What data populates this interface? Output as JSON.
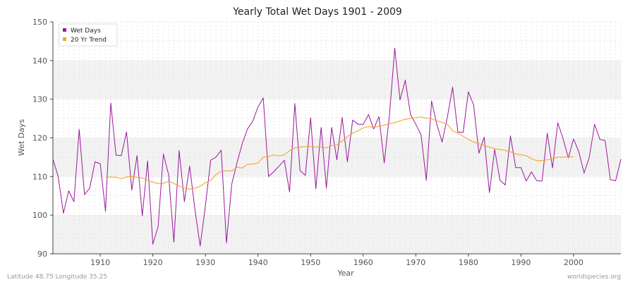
{
  "chart_data": {
    "type": "line",
    "title": "Yearly Total Wet Days 1901 - 2009",
    "xlabel": "Year",
    "ylabel": "Wet Days",
    "xlim": [
      1901,
      2009
    ],
    "ylim": [
      90,
      150
    ],
    "xticks": [
      1910,
      1920,
      1930,
      1940,
      1950,
      1960,
      1970,
      1980,
      1990,
      2000
    ],
    "yticks": [
      90,
      100,
      110,
      120,
      130,
      140,
      150
    ],
    "grid": true,
    "legend_position": "top-left",
    "series": [
      {
        "name": "Wet Days",
        "color": "#9b199b",
        "x": [
          1901,
          1902,
          1903,
          1904,
          1905,
          1906,
          1907,
          1908,
          1909,
          1910,
          1911,
          1912,
          1913,
          1914,
          1915,
          1916,
          1917,
          1918,
          1919,
          1920,
          1921,
          1922,
          1923,
          1924,
          1925,
          1926,
          1927,
          1928,
          1929,
          1930,
          1931,
          1932,
          1933,
          1934,
          1935,
          1936,
          1937,
          1938,
          1939,
          1940,
          1941,
          1942,
          1943,
          1944,
          1945,
          1946,
          1947,
          1948,
          1949,
          1950,
          1951,
          1952,
          1953,
          1954,
          1955,
          1956,
          1957,
          1958,
          1959,
          1960,
          1961,
          1962,
          1963,
          1964,
          1965,
          1966,
          1967,
          1968,
          1969,
          1970,
          1971,
          1972,
          1973,
          1974,
          1975,
          1976,
          1977,
          1978,
          1979,
          1980,
          1981,
          1982,
          1983,
          1984,
          1985,
          1986,
          1987,
          1988,
          1989,
          1990,
          1991,
          1992,
          1993,
          1994,
          1995,
          1996,
          1997,
          1998,
          1999,
          2000,
          2001,
          2002,
          2003,
          2004,
          2005,
          2006,
          2007,
          2008,
          2009
        ],
        "values": [
          114.5,
          110,
          100.5,
          106.3,
          103.5,
          122.2,
          105.3,
          107,
          113.8,
          113.3,
          101,
          129,
          115.5,
          115.4,
          121.5,
          106.5,
          115.4,
          99.8,
          114,
          92.5,
          97,
          115.8,
          110.5,
          93,
          116.7,
          103.5,
          112.7,
          101.5,
          92,
          102.5,
          114.2,
          115,
          116.8,
          92.8,
          108,
          113.5,
          118.5,
          122.3,
          124.3,
          128,
          130.3,
          110,
          111.2,
          112.7,
          114.2,
          106,
          128.9,
          111.5,
          110.3,
          125.2,
          106.8,
          122.7,
          107,
          122.7,
          114.3,
          125.3,
          113.8,
          124.6,
          123.5,
          123.5,
          126,
          122.3,
          125.5,
          113.5,
          126,
          143.2,
          129.8,
          134.9,
          126,
          123.5,
          120.8,
          109,
          129.5,
          123.5,
          118.9,
          125.3,
          133.1,
          121.5,
          121.4,
          131.9,
          128.5,
          116,
          120.2,
          105.8,
          117,
          109.1,
          107.8,
          120.5,
          112.3,
          112.3,
          108.8,
          111.2,
          108.9,
          108.8,
          121.2,
          112.2,
          123.9,
          119.8,
          114.8,
          119.7,
          116.4,
          110.9,
          115,
          123.5,
          119.6,
          119.3,
          109.2,
          108.9,
          114.5
        ]
      },
      {
        "name": "20 Yr Trend",
        "color": "#f5a623",
        "x": [
          1911,
          1912,
          1913,
          1914,
          1915,
          1916,
          1917,
          1918,
          1919,
          1920,
          1921,
          1922,
          1923,
          1924,
          1925,
          1926,
          1927,
          1928,
          1929,
          1930,
          1931,
          1932,
          1933,
          1934,
          1935,
          1936,
          1937,
          1938,
          1939,
          1940,
          1941,
          1942,
          1943,
          1944,
          1945,
          1946,
          1947,
          1948,
          1949,
          1950,
          1951,
          1952,
          1953,
          1954,
          1955,
          1956,
          1957,
          1958,
          1959,
          1960,
          1961,
          1962,
          1963,
          1964,
          1965,
          1966,
          1967,
          1968,
          1969,
          1970,
          1971,
          1972,
          1973,
          1974,
          1975,
          1976,
          1977,
          1978,
          1979,
          1980,
          1981,
          1982,
          1983,
          1984,
          1985,
          1986,
          1987,
          1988,
          1989,
          1990,
          1991,
          1992,
          1993,
          1994,
          1995,
          1996,
          1997,
          1998,
          1999,
          2000
        ],
        "values": [
          109.8,
          109.9,
          109.8,
          109.4,
          109.9,
          110,
          109.8,
          109.6,
          109,
          108.5,
          108.2,
          108.2,
          108.8,
          108.2,
          107.5,
          107,
          106.7,
          107,
          107.5,
          108.4,
          109,
          110.5,
          111.3,
          111.5,
          111.4,
          112.4,
          112.2,
          113.2,
          113.2,
          113.5,
          115,
          115.2,
          115.6,
          115.3,
          115.6,
          116.7,
          117.4,
          117.6,
          117.7,
          117.7,
          117.6,
          117.6,
          117.4,
          118,
          118.2,
          119.2,
          120.3,
          121.2,
          121.8,
          122.6,
          122.9,
          122.7,
          123,
          123.3,
          123.7,
          123.9,
          124.4,
          124.8,
          125,
          125.2,
          125.4,
          125.1,
          124.9,
          124.4,
          124,
          123.5,
          121.8,
          121.2,
          120.4,
          119.6,
          118.9,
          118.5,
          118,
          117.6,
          117.2,
          117,
          116.7,
          116.4,
          115.8,
          115.6,
          115.4,
          114.6,
          114.1,
          114.1,
          114.3,
          114.6,
          115,
          115,
          115.1,
          115.1
        ]
      }
    ]
  },
  "footer": {
    "left": "Latitude 48.75 Longitude 35.25",
    "right": "worldspecies.org"
  }
}
